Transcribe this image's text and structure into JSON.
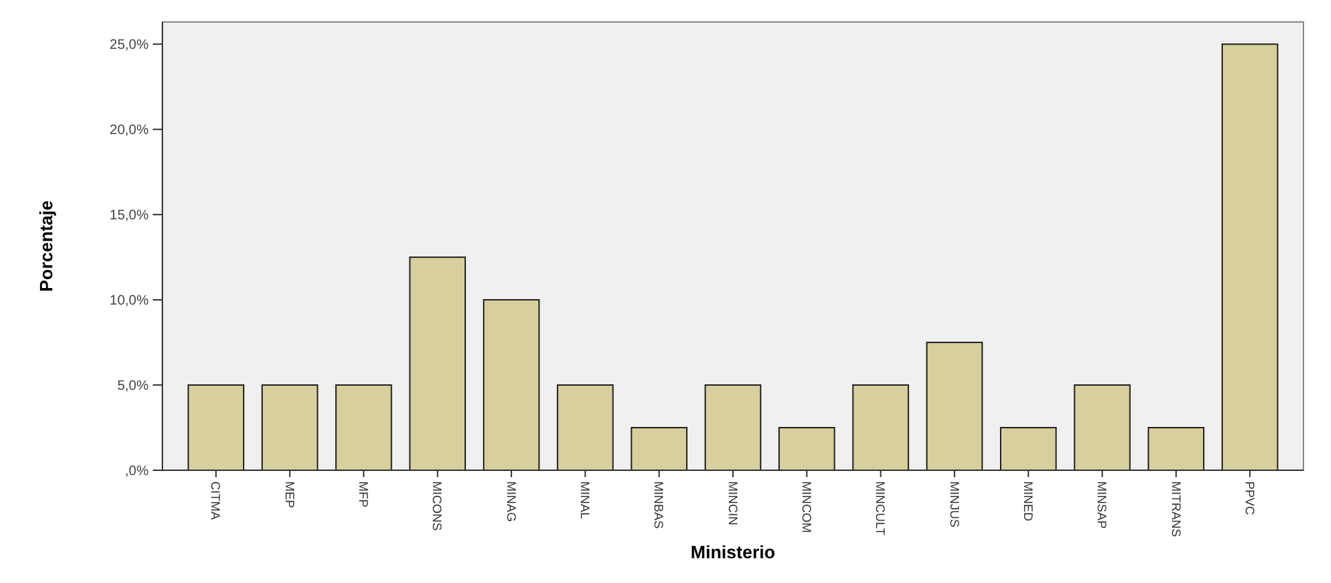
{
  "chart_data": {
    "type": "bar",
    "xlabel": "Ministerio",
    "ylabel": "Porcentaje",
    "categories": [
      "CITMA",
      "MEP",
      "MFP",
      "MICONS",
      "MINAG",
      "MINAL",
      "MINBAS",
      "MINCIN",
      "MINCOM",
      "MINCULT",
      "MINJUS",
      "MINED",
      "MINSAP",
      "MITRANS",
      "PPVC"
    ],
    "values": [
      5,
      5,
      5,
      12.5,
      10,
      5,
      2.5,
      5,
      2.5,
      5,
      7.5,
      2.5,
      5,
      2.5,
      25
    ],
    "color": "#d8d09c",
    "ylim": [
      0,
      26.3
    ],
    "yticks": [
      {
        "value": 0,
        "label": ",0%"
      },
      {
        "value": 5,
        "label": "5,0%"
      },
      {
        "value": 10,
        "label": "10,0%"
      },
      {
        "value": 15,
        "label": "15,0%"
      },
      {
        "value": 20,
        "label": "20,0%"
      },
      {
        "value": 25,
        "label": "25,0%"
      }
    ],
    "grid": false
  }
}
